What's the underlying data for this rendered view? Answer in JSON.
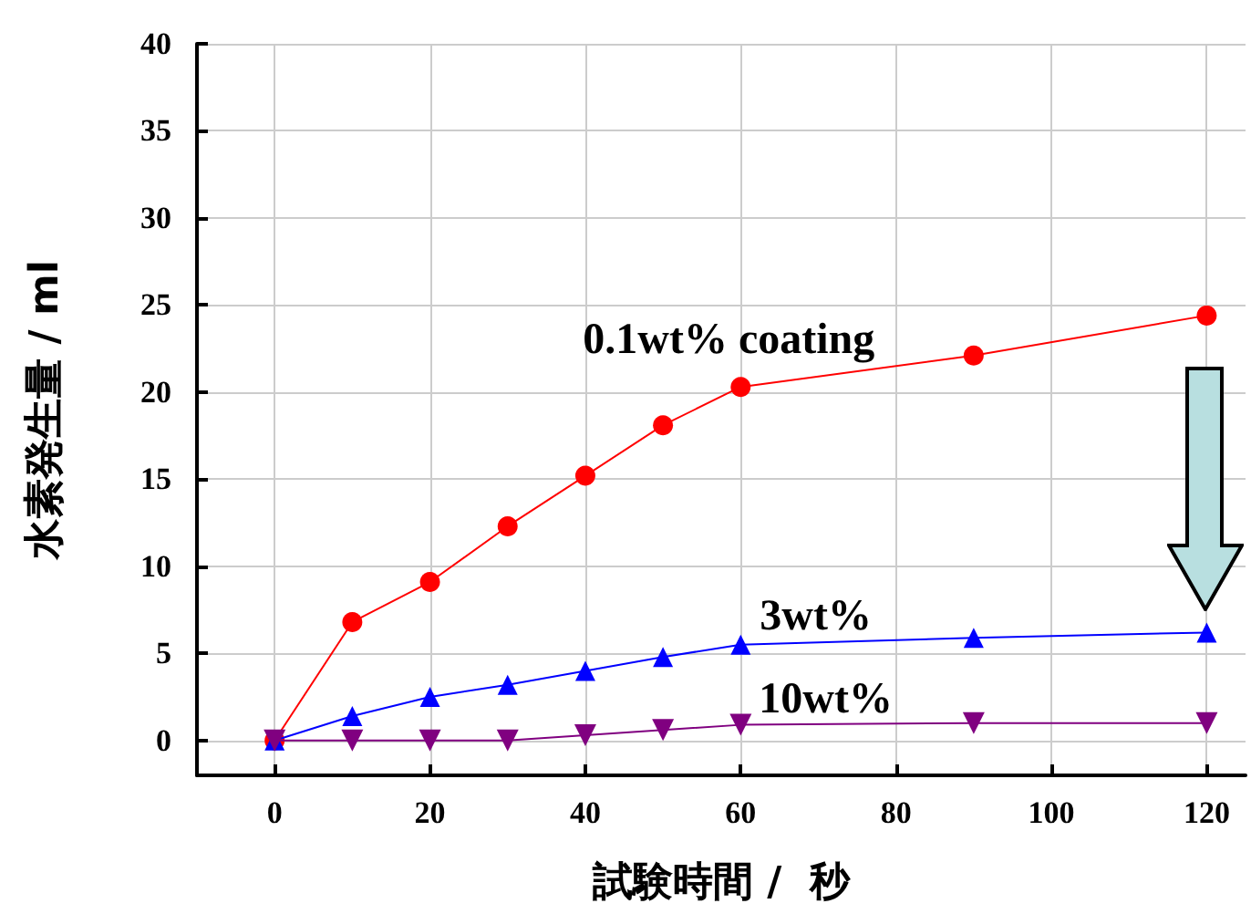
{
  "chart_data": {
    "type": "line",
    "xlabel": "試験時間 /  秒",
    "ylabel": "水素発生量 / ml",
    "x": [
      0,
      10,
      20,
      30,
      40,
      50,
      60,
      90,
      120
    ],
    "series": [
      {
        "name": "0.1wt% coating",
        "color": "#ff0000",
        "marker": "circle",
        "values": [
          0,
          6.8,
          9.1,
          12.3,
          15.2,
          18.1,
          20.3,
          22.1,
          24.4
        ]
      },
      {
        "name": "3wt%",
        "color": "#0000ff",
        "marker": "triangle",
        "values": [
          0,
          1.4,
          2.5,
          3.2,
          4.0,
          4.8,
          5.5,
          5.9,
          6.2
        ]
      },
      {
        "name": "10wt%",
        "color": "#800080",
        "marker": "triangle-down",
        "values": [
          0,
          0,
          0,
          0,
          0.3,
          0.6,
          0.9,
          1.0,
          1.0
        ]
      }
    ],
    "xlim": [
      -10,
      125
    ],
    "xticks": [
      0,
      20,
      40,
      60,
      80,
      100,
      120
    ],
    "ylim": [
      -2,
      40
    ],
    "yticks": [
      0,
      5,
      10,
      15,
      20,
      25,
      30,
      35,
      40
    ],
    "grid": true,
    "legend": false
  }
}
